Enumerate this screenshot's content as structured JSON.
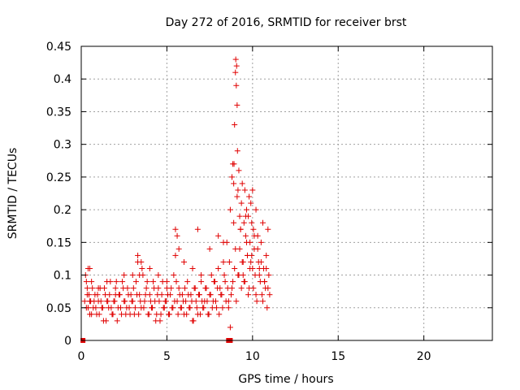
{
  "chart_data": {
    "type": "scatter",
    "title": "Day 272 of 2016, SRMTID for receiver brst",
    "xlabel": "GPS time / hours",
    "ylabel": "SRMTID / TECUs",
    "xlim": [
      0,
      24
    ],
    "ylim": [
      0,
      0.45
    ],
    "x_ticks": [
      "0",
      "5",
      "10",
      "15",
      "20"
    ],
    "x_tick_values": [
      0,
      5,
      10,
      15,
      20
    ],
    "y_ticks": [
      "0",
      "0.05",
      "0.1",
      "0.15",
      "0.2",
      "0.25",
      "0.3",
      "0.35",
      "0.4",
      "0.45"
    ],
    "y_tick_values": [
      0,
      0.05,
      0.1,
      0.15,
      0.2,
      0.25,
      0.3,
      0.35,
      0.4,
      0.45
    ],
    "grid": true,
    "series_color": "#e00000",
    "series": [
      {
        "name": "SRMTID",
        "marker": "plus",
        "x": [
          0.2,
          0.25,
          0.3,
          0.35,
          0.4,
          0.45,
          0.5,
          0.55,
          0.6,
          0.7,
          0.8,
          0.9,
          1.0,
          1.1,
          1.2,
          1.3,
          1.4,
          1.5,
          1.6,
          1.7,
          1.8,
          1.9,
          2.0,
          2.1,
          2.2,
          2.3,
          2.4,
          2.5,
          2.6,
          2.7,
          2.8,
          2.9,
          3.0,
          3.1,
          3.2,
          3.3,
          3.4,
          3.5,
          3.6,
          3.7,
          3.8,
          3.9,
          4.0,
          4.1,
          4.2,
          4.3,
          4.4,
          4.5,
          4.6,
          4.7,
          4.8,
          4.9,
          5.0,
          5.1,
          5.2,
          5.3,
          5.4,
          5.5,
          5.6,
          5.7,
          5.8,
          5.9,
          6.0,
          6.1,
          6.2,
          6.3,
          6.4,
          6.5,
          6.6,
          6.7,
          6.8,
          6.9,
          7.0,
          7.1,
          7.2,
          7.3,
          7.4,
          7.5,
          7.6,
          7.7,
          7.8,
          7.9,
          8.0,
          8.1,
          8.2,
          8.3,
          8.4,
          8.5,
          8.6,
          8.7,
          8.8,
          8.9,
          9.0,
          9.1,
          9.2,
          9.3,
          9.4,
          9.5,
          9.6,
          9.7,
          9.8,
          9.9,
          10.0,
          10.1,
          10.2,
          10.3,
          10.4,
          10.5,
          10.6,
          10.7,
          10.8,
          10.9,
          11.0,
          0.3,
          0.35,
          0.4,
          0.5,
          0.6,
          0.65,
          0.75,
          0.85,
          0.95,
          1.05,
          1.15,
          1.25,
          1.35,
          1.45,
          1.55,
          1.65,
          1.75,
          1.85,
          1.95,
          2.05,
          2.15,
          2.25,
          2.35,
          2.45,
          2.55,
          2.65,
          2.75,
          2.85,
          2.95,
          3.05,
          3.15,
          3.25,
          3.35,
          3.45,
          3.55,
          3.65,
          3.75,
          3.85,
          3.95,
          4.05,
          4.15,
          4.25,
          4.35,
          4.45,
          4.55,
          4.65,
          4.75,
          4.85,
          4.95,
          5.05,
          5.15,
          5.25,
          5.35,
          5.45,
          5.55,
          5.65,
          5.75,
          5.85,
          5.95,
          6.05,
          6.15,
          6.25,
          6.35,
          6.45,
          6.55,
          6.65,
          6.75,
          6.85,
          6.95,
          7.05,
          7.15,
          7.25,
          7.35,
          7.45,
          7.55,
          7.65,
          7.75,
          7.85,
          7.95,
          8.05,
          8.15,
          8.25,
          8.35,
          8.45,
          8.55,
          8.65,
          8.75,
          8.85,
          8.95,
          9.05,
          9.15,
          9.25,
          9.35,
          9.45,
          9.55,
          9.65,
          9.75,
          9.85,
          9.95,
          10.05,
          10.15,
          10.25,
          10.35,
          10.45,
          10.55,
          10.65,
          10.75,
          10.85,
          10.95,
          0.5,
          1.0,
          1.5,
          2.0,
          2.5,
          3.0,
          3.3,
          3.4,
          3.5,
          4.0,
          4.5,
          5.0,
          5.5,
          5.6,
          5.7,
          6.0,
          6.5,
          6.8,
          7.0,
          7.5,
          8.0,
          8.3,
          8.6,
          8.7,
          8.8,
          8.85,
          8.9,
          8.92,
          8.95,
          9.0,
          9.02,
          9.05,
          9.07,
          9.1,
          9.12,
          9.15,
          9.2,
          9.25,
          9.3,
          9.35,
          9.4,
          9.45,
          9.5,
          9.55,
          9.6,
          9.65,
          9.7,
          9.75,
          9.8,
          9.85,
          9.9,
          9.95,
          10.0,
          10.05,
          10.1,
          10.2,
          10.3,
          10.4,
          10.5,
          10.6,
          10.7,
          10.8,
          10.9
        ],
        "y": [
          0.06,
          0.1,
          0.05,
          0.08,
          0.11,
          0.07,
          0.04,
          0.06,
          0.09,
          0.05,
          0.07,
          0.04,
          0.06,
          0.08,
          0.05,
          0.03,
          0.07,
          0.06,
          0.05,
          0.09,
          0.04,
          0.06,
          0.08,
          0.03,
          0.07,
          0.05,
          0.09,
          0.06,
          0.04,
          0.08,
          0.05,
          0.07,
          0.06,
          0.04,
          0.09,
          0.12,
          0.07,
          0.05,
          0.1,
          0.06,
          0.08,
          0.04,
          0.07,
          0.05,
          0.09,
          0.06,
          0.04,
          0.08,
          0.03,
          0.07,
          0.05,
          0.06,
          0.09,
          0.04,
          0.07,
          0.05,
          0.1,
          0.13,
          0.06,
          0.08,
          0.05,
          0.07,
          0.04,
          0.06,
          0.09,
          0.05,
          0.07,
          0.03,
          0.08,
          0.06,
          0.04,
          0.07,
          0.09,
          0.05,
          0.06,
          0.08,
          0.04,
          0.07,
          0.1,
          0.06,
          0.09,
          0.05,
          0.11,
          0.08,
          0.07,
          0.12,
          0.09,
          0.15,
          0.06,
          0.2,
          0.25,
          0.18,
          0.14,
          0.22,
          0.1,
          0.17,
          0.12,
          0.09,
          0.19,
          0.13,
          0.08,
          0.21,
          0.11,
          0.16,
          0.07,
          0.14,
          0.1,
          0.12,
          0.06,
          0.09,
          0.11,
          0.08,
          0.07,
          0.09,
          0.07,
          0.05,
          0.06,
          0.04,
          0.08,
          0.06,
          0.05,
          0.07,
          0.04,
          0.06,
          0.05,
          0.08,
          0.03,
          0.06,
          0.07,
          0.05,
          0.04,
          0.06,
          0.09,
          0.05,
          0.07,
          0.04,
          0.08,
          0.06,
          0.05,
          0.07,
          0.04,
          0.06,
          0.08,
          0.05,
          0.07,
          0.04,
          0.06,
          0.11,
          0.05,
          0.07,
          0.09,
          0.04,
          0.06,
          0.05,
          0.08,
          0.03,
          0.07,
          0.06,
          0.04,
          0.09,
          0.05,
          0.06,
          0.07,
          0.04,
          0.08,
          0.05,
          0.06,
          0.09,
          0.04,
          0.07,
          0.05,
          0.06,
          0.08,
          0.04,
          0.07,
          0.05,
          0.06,
          0.03,
          0.08,
          0.05,
          0.07,
          0.04,
          0.06,
          0.05,
          0.08,
          0.06,
          0.04,
          0.07,
          0.05,
          0.09,
          0.06,
          0.08,
          0.04,
          0.07,
          0.05,
          0.1,
          0.06,
          0.08,
          0.12,
          0.07,
          0.09,
          0.11,
          0.06,
          0.1,
          0.14,
          0.08,
          0.12,
          0.09,
          0.15,
          0.07,
          0.11,
          0.13,
          0.08,
          0.1,
          0.06,
          0.12,
          0.09,
          0.07,
          0.11,
          0.08,
          0.05,
          0.1,
          0.11,
          0.08,
          0.09,
          0.07,
          0.1,
          0.1,
          0.13,
          0.1,
          0.12,
          0.11,
          0.1,
          0.08,
          0.17,
          0.16,
          0.14,
          0.12,
          0.11,
          0.17,
          0.1,
          0.14,
          0.16,
          0.15,
          0.05,
          0.02,
          0.08,
          0.27,
          0.24,
          0.27,
          0.33,
          0.41,
          0.43,
          0.39,
          0.42,
          0.36,
          0.29,
          0.23,
          0.26,
          0.19,
          0.17,
          0.21,
          0.24,
          0.1,
          0.18,
          0.23,
          0.16,
          0.2,
          0.13,
          0.19,
          0.22,
          0.15,
          0.12,
          0.18,
          0.23,
          0.17,
          0.14,
          0.2,
          0.16,
          0.11,
          0.15,
          0.18,
          0.09,
          0.13,
          0.17
        ]
      },
      {
        "name": "baseline",
        "marker": "square",
        "x": [
          0.1,
          8.6,
          8.7
        ],
        "y": [
          0,
          0,
          0
        ]
      }
    ]
  }
}
